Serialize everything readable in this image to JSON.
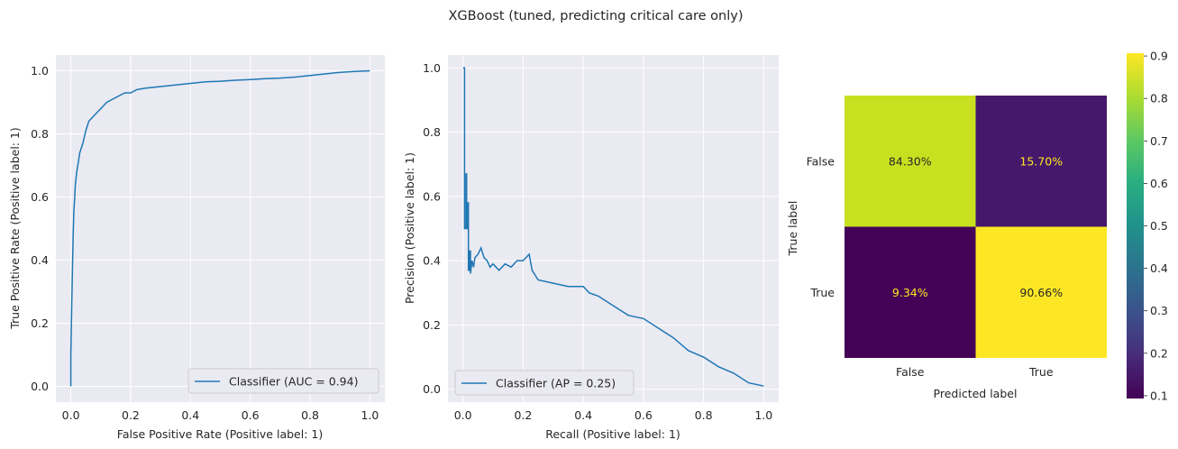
{
  "figure": {
    "title": "XGBoost (tuned, predicting critical care only)"
  },
  "chart_data": [
    {
      "type": "line",
      "name": "roc",
      "xlabel": "False Positive Rate (Positive label: 1)",
      "ylabel": "True Positive Rate (Positive label: 1)",
      "xlim": [
        -0.05,
        1.05
      ],
      "ylim": [
        -0.05,
        1.05
      ],
      "xticks": [
        "0.0",
        "0.2",
        "0.4",
        "0.6",
        "0.8",
        "1.0"
      ],
      "yticks": [
        "0.0",
        "0.2",
        "0.4",
        "0.6",
        "0.8",
        "1.0"
      ],
      "grid": true,
      "legend_position": "bottom-right",
      "color": "#1f77b4",
      "series": [
        {
          "name": "Classifier (AUC = 0.94)",
          "x": [
            0.0,
            0.0,
            0.003,
            0.005,
            0.008,
            0.01,
            0.013,
            0.015,
            0.02,
            0.025,
            0.03,
            0.04,
            0.05,
            0.06,
            0.08,
            0.1,
            0.12,
            0.14,
            0.16,
            0.18,
            0.2,
            0.22,
            0.25,
            0.3,
            0.35,
            0.4,
            0.45,
            0.5,
            0.55,
            0.6,
            0.65,
            0.7,
            0.75,
            0.8,
            0.85,
            0.9,
            0.95,
            1.0
          ],
          "y": [
            0.0,
            0.1,
            0.26,
            0.36,
            0.48,
            0.55,
            0.6,
            0.64,
            0.68,
            0.71,
            0.74,
            0.77,
            0.81,
            0.84,
            0.86,
            0.88,
            0.9,
            0.91,
            0.92,
            0.93,
            0.93,
            0.94,
            0.945,
            0.95,
            0.955,
            0.96,
            0.965,
            0.967,
            0.97,
            0.972,
            0.975,
            0.977,
            0.98,
            0.985,
            0.99,
            0.995,
            0.998,
            1.0
          ]
        }
      ]
    },
    {
      "type": "line",
      "name": "precision-recall",
      "xlabel": "Recall (Positive label: 1)",
      "ylabel": "Precision (Positive label: 1)",
      "xlim": [
        -0.05,
        1.05
      ],
      "ylim": [
        -0.04,
        1.04
      ],
      "xticks": [
        "0.0",
        "0.2",
        "0.4",
        "0.6",
        "0.8",
        "1.0"
      ],
      "yticks": [
        "0.0",
        "0.2",
        "0.4",
        "0.6",
        "0.8",
        "1.0"
      ],
      "grid": true,
      "legend_position": "bottom-left",
      "color": "#1f77b4",
      "series": [
        {
          "name": "Classifier (AP = 0.25)",
          "x": [
            0.0,
            0.005,
            0.005,
            0.01,
            0.01,
            0.012,
            0.012,
            0.015,
            0.015,
            0.018,
            0.018,
            0.022,
            0.022,
            0.025,
            0.025,
            0.03,
            0.035,
            0.04,
            0.05,
            0.06,
            0.07,
            0.08,
            0.09,
            0.1,
            0.12,
            0.14,
            0.16,
            0.18,
            0.2,
            0.22,
            0.23,
            0.25,
            0.3,
            0.35,
            0.4,
            0.42,
            0.45,
            0.5,
            0.55,
            0.6,
            0.65,
            0.7,
            0.75,
            0.8,
            0.85,
            0.9,
            0.95,
            1.0
          ],
          "y": [
            1.0,
            1.0,
            0.5,
            0.5,
            0.67,
            0.67,
            0.5,
            0.5,
            0.58,
            0.58,
            0.37,
            0.37,
            0.43,
            0.43,
            0.36,
            0.4,
            0.38,
            0.41,
            0.42,
            0.44,
            0.41,
            0.4,
            0.38,
            0.39,
            0.37,
            0.39,
            0.38,
            0.4,
            0.4,
            0.42,
            0.37,
            0.34,
            0.33,
            0.32,
            0.32,
            0.3,
            0.29,
            0.26,
            0.23,
            0.22,
            0.19,
            0.16,
            0.12,
            0.1,
            0.07,
            0.05,
            0.02,
            0.01
          ]
        }
      ]
    },
    {
      "type": "heatmap",
      "name": "confusion-matrix",
      "xlabel": "Predicted label",
      "ylabel": "True label",
      "x_categories": [
        "False",
        "True"
      ],
      "y_categories": [
        "False",
        "True"
      ],
      "values": [
        [
          0.843,
          0.157
        ],
        [
          0.0934,
          0.9066
        ]
      ],
      "labels": [
        [
          "84.30%",
          "15.70%"
        ],
        [
          "9.34%",
          "90.66%"
        ]
      ],
      "cell_colors": [
        [
          "#c8e020",
          "#46186b"
        ],
        [
          "#440356",
          "#fde725"
        ]
      ],
      "text_colors": [
        [
          "#262626",
          "#fde725"
        ],
        [
          "#fde725",
          "#262626"
        ]
      ],
      "colormap": "viridis",
      "colorbar": {
        "range": [
          0.0934,
          0.9066
        ],
        "ticks": [
          "0.1",
          "0.2",
          "0.3",
          "0.4",
          "0.5",
          "0.6",
          "0.7",
          "0.8",
          "0.9"
        ]
      }
    }
  ]
}
